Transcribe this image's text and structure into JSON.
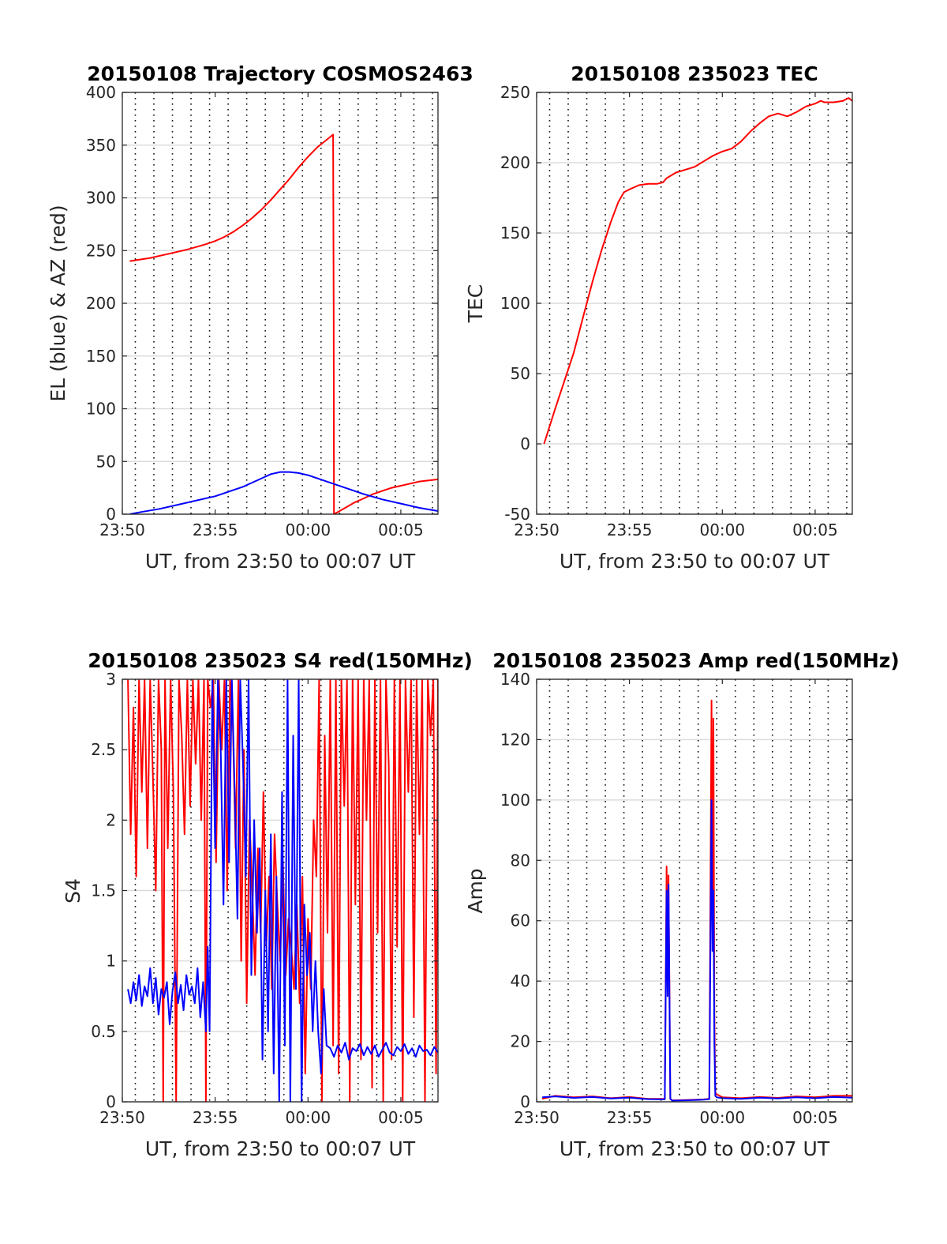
{
  "chart_data": [
    {
      "id": "trajectory",
      "type": "line",
      "title": "20150108 Trajectory COSMOS2463",
      "xlabel": "UT, from 23:50 to 00:07 UT",
      "ylabel": "EL (blue) & AZ (red)",
      "xlim": [
        0,
        17
      ],
      "ylim": [
        0,
        400
      ],
      "yticks": [
        0,
        50,
        100,
        150,
        200,
        250,
        300,
        350,
        400
      ],
      "xticks": [
        0,
        5,
        10,
        15
      ],
      "xticklabels": [
        "23:50",
        "23:55",
        "00:00",
        "00:05"
      ],
      "minute_grid": [
        0.7,
        1.7,
        2.7,
        3.7,
        4.7,
        5.7,
        6.7,
        7.7,
        8.7,
        9.7,
        10.7,
        11.7,
        12.7,
        13.7,
        14.7,
        15.7,
        16.7
      ],
      "series": [
        {
          "name": "AZ",
          "color": "#ff0000",
          "x": [
            0.4,
            1.5,
            2.5,
            3.5,
            4.5,
            5.0,
            5.5,
            6.0,
            6.5,
            7.0,
            7.5,
            8.0,
            8.5,
            9.0,
            9.5,
            10.0,
            10.5,
            11.0,
            11.35,
            11.38,
            11.4,
            12.0,
            12.5,
            13.0,
            13.5,
            14.0,
            14.5,
            15.0,
            15.5,
            16.0,
            16.5,
            17.0
          ],
          "values": [
            240,
            243,
            247,
            251,
            256,
            259,
            263,
            268,
            274,
            281,
            289,
            298,
            308,
            318,
            329,
            339,
            348,
            355,
            360,
            200,
            0,
            6,
            11,
            15,
            19,
            22,
            25,
            27,
            29,
            31,
            32,
            33
          ]
        },
        {
          "name": "EL",
          "color": "#0000ff",
          "x": [
            0.4,
            1.0,
            2.0,
            3.0,
            4.0,
            5.0,
            6.0,
            6.5,
            7.0,
            7.5,
            8.0,
            8.5,
            9.0,
            9.5,
            10.0,
            10.5,
            11.0,
            11.5,
            12.0,
            12.5,
            13.0,
            14.0,
            15.0,
            16.0,
            17.0
          ],
          "values": [
            0,
            2,
            5,
            9,
            13,
            17,
            23,
            26,
            30,
            34,
            38,
            40,
            40,
            39,
            37,
            34,
            31,
            28,
            25,
            22,
            19,
            14,
            10,
            6,
            3
          ]
        }
      ]
    },
    {
      "id": "tec",
      "type": "line",
      "title": "20150108 235023 TEC",
      "xlabel": "UT, from 23:50 to 00:07 UT",
      "ylabel": "TEC",
      "xlim": [
        0,
        17
      ],
      "ylim": [
        -50,
        250
      ],
      "yticks": [
        -50,
        0,
        50,
        100,
        150,
        200,
        250
      ],
      "xticks": [
        0,
        5,
        10,
        15
      ],
      "xticklabels": [
        "23:50",
        "23:55",
        "00:00",
        "00:05"
      ],
      "minute_grid": [
        0.7,
        1.7,
        2.7,
        3.7,
        4.7,
        5.7,
        6.7,
        7.7,
        8.7,
        9.7,
        10.7,
        11.7,
        12.7,
        13.7,
        14.7,
        15.7,
        16.7
      ],
      "series": [
        {
          "name": "TEC",
          "color": "#ff0000",
          "x": [
            0.4,
            1.0,
            1.5,
            2.0,
            2.5,
            3.0,
            3.5,
            4.0,
            4.4,
            4.7,
            5.0,
            5.5,
            6.0,
            6.5,
            6.8,
            7.0,
            7.5,
            8.0,
            8.5,
            9.0,
            9.5,
            10.0,
            10.5,
            11.0,
            11.5,
            12.0,
            12.5,
            13.0,
            13.5,
            14.0,
            14.5,
            15.0,
            15.3,
            15.5,
            16.0,
            16.5,
            16.8,
            17.0
          ],
          "values": [
            0,
            25,
            45,
            65,
            90,
            115,
            138,
            158,
            172,
            179,
            181,
            184,
            185,
            185,
            186,
            189,
            193,
            195,
            197,
            201,
            205,
            208,
            210,
            215,
            222,
            228,
            233,
            235,
            233,
            236,
            240,
            242,
            244,
            243,
            243,
            244,
            246,
            244
          ]
        }
      ]
    },
    {
      "id": "s4",
      "type": "line",
      "title": "20150108 235023 S4 red(150MHz)",
      "xlabel": "UT, from 23:50 to 00:07 UT",
      "ylabel": "S4",
      "xlim": [
        0,
        17
      ],
      "ylim": [
        0,
        3
      ],
      "yticks": [
        0,
        0.5,
        1,
        1.5,
        2,
        2.5,
        3
      ],
      "xticks": [
        0,
        5,
        10,
        15
      ],
      "xticklabels": [
        "23:50",
        "23:55",
        "00:00",
        "00:05"
      ],
      "minute_grid": [
        0.7,
        1.7,
        2.7,
        3.7,
        4.7,
        5.7,
        6.7,
        7.7,
        8.7,
        9.7,
        10.7,
        11.7,
        12.7,
        13.7,
        14.7,
        15.7,
        16.7
      ],
      "series": [
        {
          "name": "S4 red",
          "color": "#ff0000",
          "x": [
            0.3,
            0.45,
            0.6,
            0.75,
            0.9,
            1.05,
            1.2,
            1.35,
            1.5,
            1.65,
            1.8,
            1.95,
            2.1,
            2.2,
            2.3,
            2.45,
            2.6,
            2.75,
            2.9,
            3.05,
            3.2,
            3.35,
            3.5,
            3.65,
            3.8,
            3.95,
            4.1,
            4.25,
            4.4,
            4.5,
            4.6,
            4.75,
            4.9,
            5.05,
            5.2,
            5.35,
            5.5,
            5.65,
            5.8,
            5.95,
            6.1,
            6.25,
            6.4,
            6.55,
            6.7,
            6.85,
            7.0,
            7.15,
            7.3,
            7.45,
            7.6,
            7.75,
            7.9,
            8.05,
            8.2,
            8.35,
            8.5,
            8.65,
            8.8,
            8.95,
            9.1,
            9.25,
            9.4,
            9.55,
            9.7,
            9.85,
            10.0,
            10.15,
            10.3,
            10.45,
            10.6,
            10.75,
            10.9,
            11.05,
            11.2,
            11.35,
            11.5,
            11.65,
            11.8,
            11.95,
            12.1,
            12.25,
            12.4,
            12.55,
            12.7,
            12.85,
            13.0,
            13.15,
            13.3,
            13.45,
            13.6,
            13.75,
            13.9,
            14.05,
            14.2,
            14.35,
            14.5,
            14.65,
            14.8,
            14.95,
            15.1,
            15.25,
            15.4,
            15.55,
            15.7,
            15.85,
            16.0,
            16.15,
            16.3,
            16.45,
            16.6,
            16.75,
            16.9,
            17.0
          ],
          "values": [
            3,
            1.9,
            2.8,
            1.6,
            3,
            2.2,
            3,
            1.8,
            3,
            2.3,
            1.5,
            3,
            2.5,
            0,
            3,
            1.8,
            3,
            2.2,
            0,
            3,
            2.6,
            1.9,
            3,
            2.1,
            3,
            2.4,
            3,
            2.0,
            3,
            0,
            3,
            2.8,
            3,
            1.7,
            3,
            2.5,
            3,
            1.5,
            3,
            2.7,
            1.8,
            3,
            1.0,
            2.5,
            0.7,
            2.0,
            1.5,
            0.9,
            1.8,
            1.2,
            2.2,
            1.1,
            1.6,
            0.8,
            1.9,
            1.4,
            1.0,
            1.7,
            0.9,
            1.3,
            1.1,
            0.8,
            1.4,
            0.7,
            1.6,
            0.2,
            1.3,
            0.8,
            2.0,
            1.6,
            3,
            0,
            2.6,
            1.2,
            3,
            0.4,
            3,
            0.2,
            3,
            2.1,
            3,
            0,
            3,
            1.4,
            3,
            0.3,
            3,
            2.0,
            3,
            0.1,
            3,
            1.2,
            3,
            0,
            3,
            2.4,
            0.3,
            3,
            1.1,
            3,
            0,
            3,
            2.2,
            3,
            0.6,
            3,
            1.9,
            3,
            0,
            3,
            2.6,
            3,
            0.2,
            3
          ]
        },
        {
          "name": "S4 blue",
          "color": "#0000ff",
          "x": [
            0.3,
            0.45,
            0.6,
            0.75,
            0.9,
            1.05,
            1.2,
            1.35,
            1.5,
            1.65,
            1.8,
            1.95,
            2.1,
            2.25,
            2.4,
            2.55,
            2.7,
            2.85,
            3.0,
            3.15,
            3.3,
            3.45,
            3.6,
            3.75,
            3.9,
            4.05,
            4.2,
            4.35,
            4.5,
            4.6,
            4.7,
            4.85,
            5.0,
            5.15,
            5.3,
            5.45,
            5.6,
            5.75,
            5.9,
            6.05,
            6.2,
            6.35,
            6.5,
            6.65,
            6.8,
            6.95,
            7.1,
            7.25,
            7.4,
            7.55,
            7.7,
            7.85,
            8.0,
            8.15,
            8.3,
            8.45,
            8.6,
            8.75,
            8.9,
            9.05,
            9.2,
            9.35,
            9.5,
            9.65,
            9.8,
            9.95,
            10.1,
            10.25,
            10.4,
            10.55,
            10.7,
            10.85,
            11.0,
            11.2,
            11.4,
            11.6,
            11.8,
            12.0,
            12.2,
            12.4,
            12.6,
            12.8,
            13.0,
            13.2,
            13.4,
            13.6,
            13.8,
            14.0,
            14.2,
            14.4,
            14.6,
            14.8,
            15.0,
            15.2,
            15.4,
            15.6,
            15.8,
            16.0,
            16.2,
            16.4,
            16.6,
            16.8,
            17.0
          ],
          "values": [
            0.8,
            0.7,
            0.85,
            0.72,
            0.9,
            0.68,
            0.82,
            0.75,
            0.95,
            0.7,
            0.88,
            0.62,
            0.8,
            0.74,
            0.85,
            0.55,
            0.78,
            0.92,
            0.7,
            0.83,
            0.65,
            0.9,
            0.76,
            0.82,
            0.7,
            0.95,
            0.6,
            0.85,
            0.5,
            1.1,
            0.5,
            3,
            1.8,
            3,
            2.5,
            1.4,
            3,
            1.7,
            3,
            2.2,
            1.3,
            3,
            2.4,
            1.6,
            3,
            0.9,
            2.0,
            1.2,
            1.8,
            0.3,
            1.5,
            0.5,
            1.9,
            0.2,
            1.6,
            0,
            2.2,
            0.4,
            3,
            0,
            2.6,
            0.8,
            3,
            0,
            1.4,
            0.9,
            1.2,
            0.5,
            1.0,
            0.5,
            0.2,
            0.8,
            0.4,
            0.38,
            0.32,
            0.4,
            0.35,
            0.42,
            0.3,
            0.38,
            0.36,
            0.41,
            0.33,
            0.39,
            0.34,
            0.4,
            0.32,
            0.37,
            0.42,
            0.35,
            0.33,
            0.39,
            0.36,
            0.41,
            0.34,
            0.38,
            0.32,
            0.4,
            0.36,
            0.37,
            0.33,
            0.39,
            0.35
          ]
        }
      ]
    },
    {
      "id": "amp",
      "type": "line",
      "title": "20150108 235023 Amp red(150MHz)",
      "xlabel": "UT, from 23:50 to 00:07 UT",
      "ylabel": "Amp",
      "xlim": [
        0,
        17
      ],
      "ylim": [
        0,
        140
      ],
      "yticks": [
        0,
        20,
        40,
        60,
        80,
        100,
        120,
        140
      ],
      "xticks": [
        0,
        5,
        10,
        15
      ],
      "xticklabels": [
        "23:50",
        "23:55",
        "00:00",
        "00:05"
      ],
      "minute_grid": [
        0.7,
        1.7,
        2.7,
        3.7,
        4.7,
        5.7,
        6.7,
        7.7,
        8.7,
        9.7,
        10.7,
        11.7,
        12.7,
        13.7,
        14.7,
        15.7,
        16.7
      ],
      "series": [
        {
          "name": "Amp red",
          "color": "#ff0000",
          "x": [
            0.3,
            1.0,
            2.0,
            3.0,
            4.0,
            5.0,
            6.0,
            6.9,
            7.0,
            7.05,
            7.1,
            7.2,
            7.3,
            8.0,
            9.0,
            9.3,
            9.42,
            9.47,
            9.52,
            9.57,
            9.62,
            9.7,
            10.0,
            11.0,
            12.0,
            13.0,
            14.0,
            15.0,
            16.0,
            17.0
          ],
          "values": [
            1,
            2,
            1.5,
            1.8,
            1.2,
            1.6,
            1,
            1,
            78,
            40,
            75,
            1,
            0.5,
            0.6,
            0.8,
            1,
            133,
            60,
            127,
            30,
            3,
            2.5,
            1.5,
            1.2,
            1.6,
            1.3,
            1.8,
            1.5,
            2,
            2
          ]
        },
        {
          "name": "Amp blue",
          "color": "#0000ff",
          "x": [
            0.3,
            1.0,
            2.0,
            3.0,
            4.0,
            5.0,
            6.0,
            6.9,
            7.0,
            7.05,
            7.1,
            7.2,
            7.3,
            8.0,
            9.0,
            9.3,
            9.42,
            9.47,
            9.52,
            9.57,
            9.62,
            9.7,
            10.0,
            11.0,
            12.0,
            13.0,
            14.0,
            15.0,
            16.0,
            17.0
          ],
          "values": [
            1.5,
            1.8,
            1.3,
            1.6,
            1.1,
            1.4,
            0.9,
            0.8,
            70,
            35,
            72,
            1,
            0.4,
            0.5,
            0.7,
            0.9,
            100,
            50,
            70,
            20,
            2,
            1.5,
            1.2,
            1.0,
            1.4,
            1.1,
            1.5,
            1.2,
            1.6,
            1.4
          ]
        }
      ]
    }
  ]
}
